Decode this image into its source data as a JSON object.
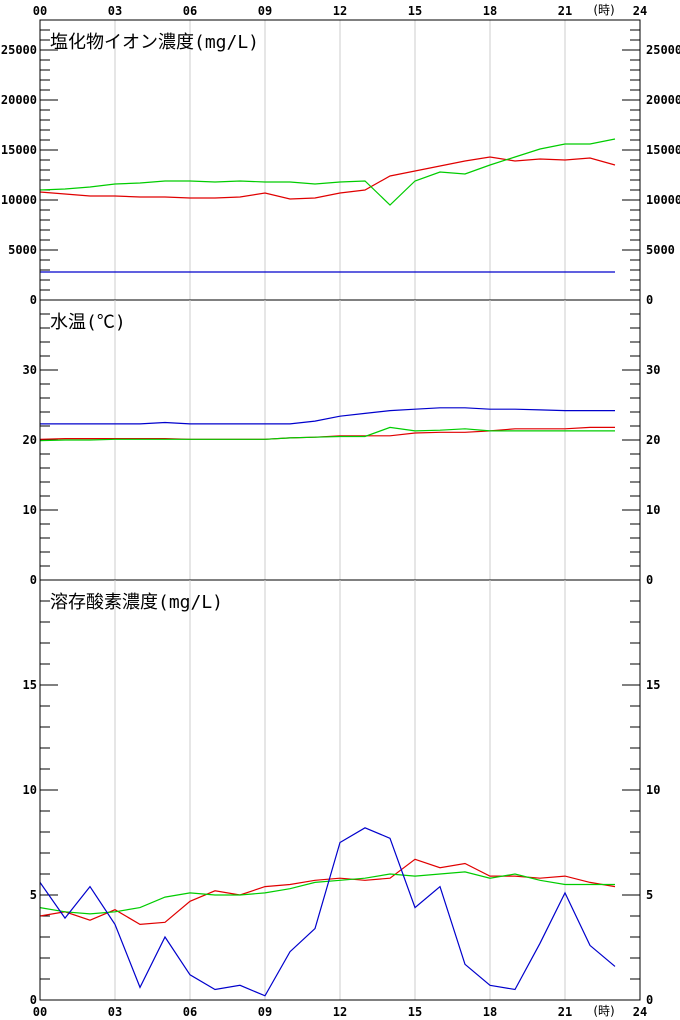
{
  "x_axis": {
    "ticks": [
      "00",
      "03",
      "06",
      "09",
      "12",
      "15",
      "18",
      "21",
      "24"
    ],
    "unit": "(時)"
  },
  "colors": {
    "red": "#e00000",
    "green": "#00cc00",
    "blue": "#0000cc",
    "grid": "#cccccc"
  },
  "chart_data": [
    {
      "type": "line",
      "title": "塩化物イオン濃度(mg/L)",
      "ylim": [
        0,
        28000
      ],
      "y_ticks": [
        {
          "v": 0,
          "label": "0"
        },
        {
          "v": 5000,
          "label": "5000"
        },
        {
          "v": 10000,
          "label": "10000"
        },
        {
          "v": 15000,
          "label": "15000"
        },
        {
          "v": 20000,
          "label": "20000"
        },
        {
          "v": 25000,
          "label": "25000"
        }
      ],
      "minor_step": 1000,
      "series": [
        {
          "color": "#e00000",
          "x": [
            0,
            1,
            2,
            3,
            4,
            5,
            6,
            7,
            8,
            9,
            10,
            11,
            12,
            13,
            14,
            15,
            16,
            17,
            18,
            19,
            20,
            21,
            22,
            23
          ],
          "y": [
            10800,
            10600,
            10400,
            10400,
            10300,
            10300,
            10200,
            10200,
            10300,
            10700,
            10100,
            10200,
            10700,
            11000,
            12400,
            12900,
            13400,
            13900,
            14300,
            13900,
            14100,
            14000,
            14200,
            13500
          ]
        },
        {
          "color": "#00cc00",
          "x": [
            0,
            1,
            2,
            3,
            4,
            5,
            6,
            7,
            8,
            9,
            10,
            11,
            12,
            13,
            14,
            15,
            16,
            17,
            18,
            19,
            20,
            21,
            22,
            23
          ],
          "y": [
            11000,
            11100,
            11300,
            11600,
            11700,
            11900,
            11900,
            11800,
            11900,
            11800,
            11800,
            11600,
            11800,
            11900,
            9500,
            11900,
            12800,
            12600,
            13500,
            14300,
            15100,
            15600,
            15600,
            16100
          ]
        },
        {
          "color": "#0000cc",
          "x": [
            0,
            23
          ],
          "y": [
            2800,
            2800
          ]
        }
      ]
    },
    {
      "type": "line",
      "title": "水温(℃)",
      "ylim": [
        0,
        40
      ],
      "y_ticks": [
        {
          "v": 0,
          "label": "0"
        },
        {
          "v": 10,
          "label": "10"
        },
        {
          "v": 20,
          "label": "20"
        },
        {
          "v": 30,
          "label": "30"
        }
      ],
      "minor_step": 2,
      "series": [
        {
          "color": "#e00000",
          "x": [
            0,
            1,
            2,
            3,
            4,
            5,
            6,
            7,
            8,
            9,
            10,
            11,
            12,
            13,
            14,
            15,
            16,
            17,
            18,
            19,
            20,
            21,
            22,
            23
          ],
          "y": [
            20.1,
            20.2,
            20.2,
            20.2,
            20.2,
            20.2,
            20.1,
            20.1,
            20.1,
            20.1,
            20.3,
            20.4,
            20.6,
            20.6,
            20.6,
            21.0,
            21.1,
            21.1,
            21.3,
            21.6,
            21.6,
            21.6,
            21.8,
            21.8
          ]
        },
        {
          "color": "#00cc00",
          "x": [
            0,
            1,
            2,
            3,
            4,
            5,
            6,
            7,
            8,
            9,
            10,
            11,
            12,
            13,
            14,
            15,
            16,
            17,
            18,
            19,
            20,
            21,
            22,
            23
          ],
          "y": [
            19.9,
            20.0,
            20.0,
            20.1,
            20.1,
            20.1,
            20.1,
            20.1,
            20.1,
            20.1,
            20.3,
            20.4,
            20.5,
            20.5,
            21.8,
            21.3,
            21.4,
            21.6,
            21.3,
            21.3,
            21.3,
            21.3,
            21.3,
            21.3
          ]
        },
        {
          "color": "#0000cc",
          "x": [
            0,
            1,
            2,
            3,
            4,
            5,
            6,
            7,
            8,
            9,
            10,
            11,
            12,
            13,
            14,
            15,
            16,
            17,
            18,
            19,
            20,
            21,
            22,
            23
          ],
          "y": [
            22.3,
            22.3,
            22.3,
            22.3,
            22.3,
            22.5,
            22.3,
            22.3,
            22.3,
            22.3,
            22.3,
            22.7,
            23.4,
            23.8,
            24.2,
            24.4,
            24.6,
            24.6,
            24.4,
            24.4,
            24.3,
            24.2,
            24.2,
            24.2
          ]
        }
      ]
    },
    {
      "type": "line",
      "title": "溶存酸素濃度(mg/L)",
      "ylim": [
        0,
        20
      ],
      "y_ticks": [
        {
          "v": 0,
          "label": "0"
        },
        {
          "v": 5,
          "label": "5"
        },
        {
          "v": 10,
          "label": "10"
        },
        {
          "v": 15,
          "label": "15"
        }
      ],
      "minor_step": 1,
      "series": [
        {
          "color": "#e00000",
          "x": [
            0,
            1,
            2,
            3,
            4,
            5,
            6,
            7,
            8,
            9,
            10,
            11,
            12,
            13,
            14,
            15,
            16,
            17,
            18,
            19,
            20,
            21,
            22,
            23
          ],
          "y": [
            4.0,
            4.2,
            3.8,
            4.3,
            3.6,
            3.7,
            4.7,
            5.2,
            5.0,
            5.4,
            5.5,
            5.7,
            5.8,
            5.7,
            5.8,
            6.7,
            6.3,
            6.5,
            5.9,
            5.9,
            5.8,
            5.9,
            5.6,
            5.4
          ]
        },
        {
          "color": "#00cc00",
          "x": [
            0,
            1,
            2,
            3,
            4,
            5,
            6,
            7,
            8,
            9,
            10,
            11,
            12,
            13,
            14,
            15,
            16,
            17,
            18,
            19,
            20,
            21,
            22,
            23
          ],
          "y": [
            4.4,
            4.2,
            4.1,
            4.2,
            4.4,
            4.9,
            5.1,
            5.0,
            5.0,
            5.1,
            5.3,
            5.6,
            5.7,
            5.8,
            6.0,
            5.9,
            6.0,
            6.1,
            5.8,
            6.0,
            5.7,
            5.5,
            5.5,
            5.5
          ]
        },
        {
          "color": "#0000cc",
          "x": [
            0,
            1,
            2,
            3,
            4,
            5,
            6,
            7,
            8,
            9,
            10,
            11,
            12,
            13,
            14,
            15,
            16,
            17,
            18,
            19,
            20,
            21,
            22,
            23
          ],
          "y": [
            5.6,
            3.9,
            5.4,
            3.6,
            0.6,
            3.0,
            1.2,
            0.5,
            0.7,
            0.2,
            2.3,
            3.4,
            7.5,
            8.2,
            7.7,
            4.4,
            5.4,
            1.7,
            0.7,
            0.5,
            2.7,
            5.1,
            2.6,
            1.6
          ]
        }
      ]
    }
  ]
}
